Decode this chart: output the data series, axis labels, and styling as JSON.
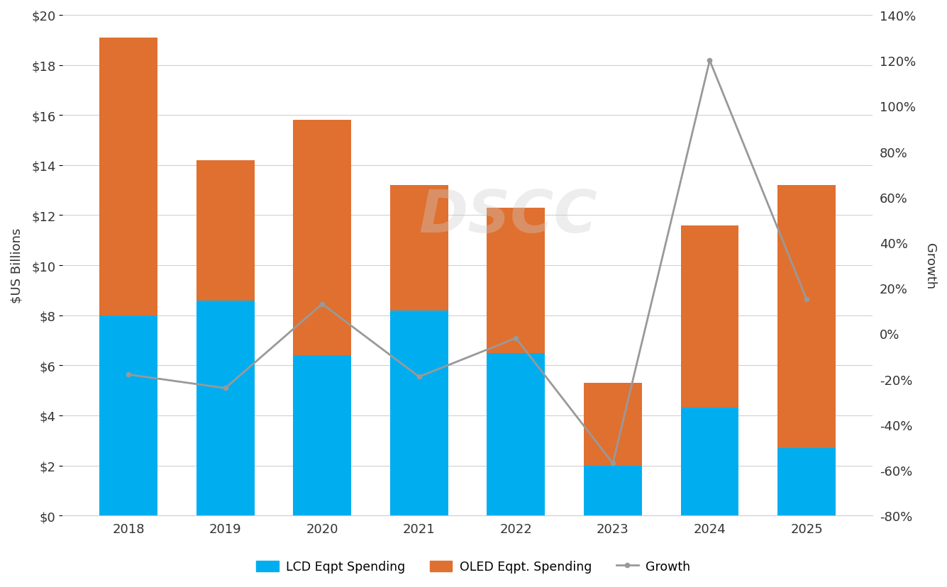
{
  "years": [
    "2018",
    "2019",
    "2020",
    "2021",
    "2022",
    "2023",
    "2024",
    "2025"
  ],
  "lcd_spending": [
    8.0,
    8.6,
    6.4,
    8.2,
    6.5,
    2.0,
    4.3,
    2.7
  ],
  "oled_spending": [
    11.1,
    5.6,
    9.4,
    5.0,
    5.8,
    3.3,
    7.3,
    10.5
  ],
  "growth": [
    -0.18,
    -0.24,
    0.13,
    -0.19,
    -0.02,
    -0.57,
    1.2,
    0.15
  ],
  "lcd_color": "#00AEEF",
  "oled_color": "#E07030",
  "growth_color": "#999999",
  "ylabel_left": "$US Billions",
  "ylabel_right": "Growth",
  "ylim_left": [
    0,
    20
  ],
  "ylim_right": [
    -0.8,
    1.4
  ],
  "yticks_left": [
    0,
    2,
    4,
    6,
    8,
    10,
    12,
    14,
    16,
    18,
    20
  ],
  "ytick_labels_left": [
    "$0",
    "$2",
    "$4",
    "$6",
    "$8",
    "$10",
    "$12",
    "$14",
    "$16",
    "$18",
    "$20"
  ],
  "yticks_right": [
    -0.8,
    -0.6,
    -0.4,
    -0.2,
    0.0,
    0.2,
    0.4,
    0.6,
    0.8,
    1.0,
    1.2,
    1.4
  ],
  "ytick_labels_right": [
    "-80%",
    "-60%",
    "-40%",
    "-20%",
    "0%",
    "20%",
    "40%",
    "60%",
    "80%",
    "100%",
    "120%",
    "140%"
  ],
  "watermark": "DSCC",
  "legend_labels": [
    "LCD Eqpt Spending",
    "OLED Eqpt. Spending",
    "Growth"
  ],
  "bar_width": 0.6
}
